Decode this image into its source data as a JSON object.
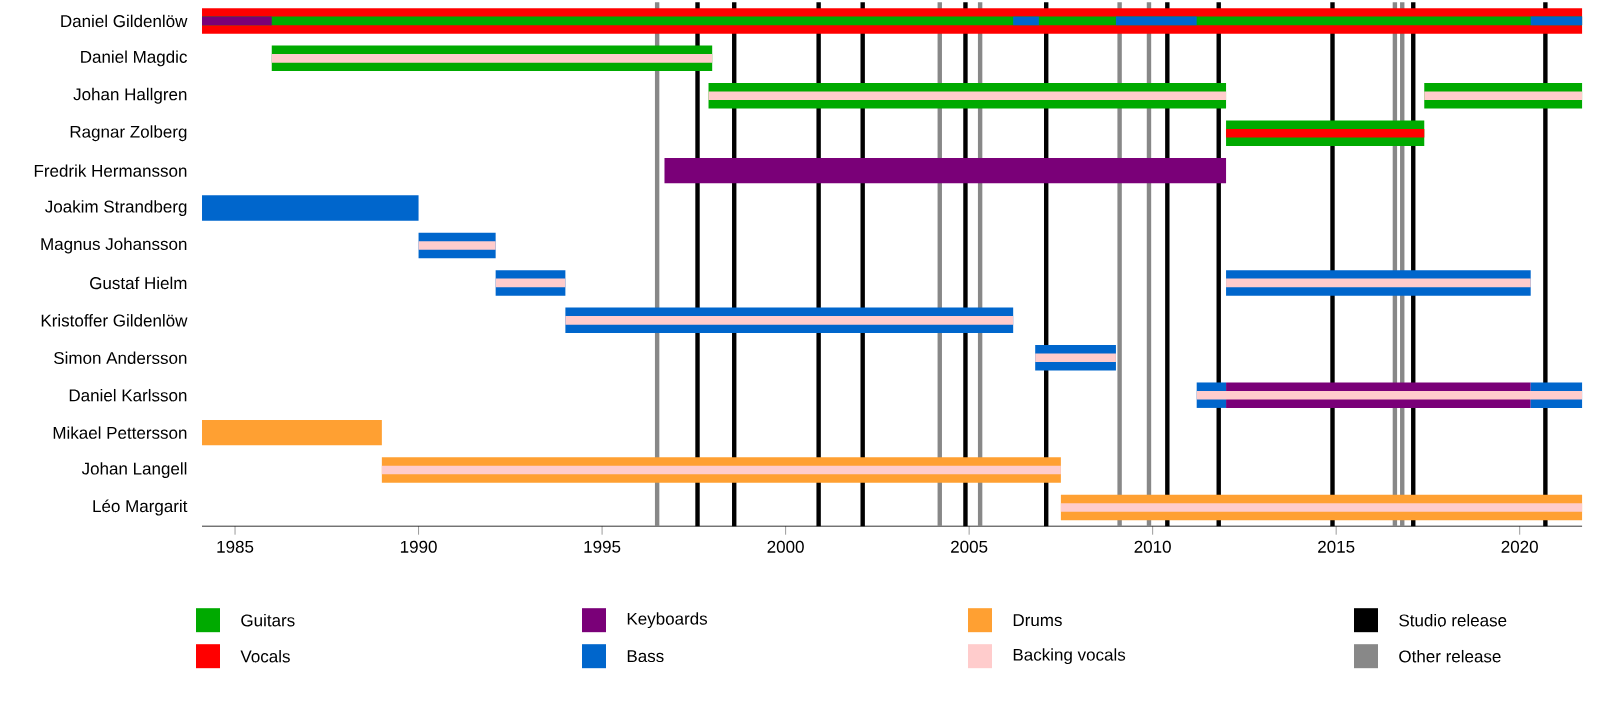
{
  "chart_data": {
    "type": "bar",
    "orientation": "horizontal",
    "categories": [
      "Daniel Gildenlöw",
      "Daniel Magdic",
      "Johan Hallgren",
      "Ragnar Zolberg",
      "Fredrik Hermansson",
      "Joakim Strandberg",
      "Magnus Johansson",
      "Gustaf Hielm",
      "Kristoffer Gildenlöw",
      "Simon Andersson",
      "Daniel Karlsson",
      "Mikael Pettersson",
      "Johan Langell",
      "Léo Margarit"
    ],
    "xlim": [
      1984.1,
      2021.7
    ],
    "xticks": [
      1985,
      1990,
      1995,
      2000,
      2005,
      2010,
      2015,
      2020
    ],
    "legend": "bottom",
    "series": [
      {
        "name": "Guitars",
        "color": "#00aa00",
        "base": [
          null,
          1986.0,
          1997.9,
          2012.0,
          null,
          null,
          null,
          null,
          null,
          null,
          null,
          null,
          null,
          null
        ],
        "values": [
          null,
          12.0,
          14.1,
          5.4,
          null,
          null,
          null,
          null,
          null,
          null,
          null,
          null,
          null,
          null
        ]
      },
      {
        "color": "#00aa00",
        "base": [
          null,
          null,
          2017.4,
          null,
          null,
          null,
          null,
          null,
          null,
          null,
          null,
          null,
          null,
          null
        ],
        "values": [
          null,
          null,
          4.3,
          null,
          null,
          null,
          null,
          null,
          null,
          null,
          null,
          null,
          null,
          null
        ]
      },
      {
        "name": "Vocals",
        "color": "#ff0000",
        "base": [
          1984.1,
          null,
          null,
          2012.0,
          null,
          null,
          null,
          null,
          null,
          null,
          null,
          null,
          null,
          null
        ],
        "values": [
          37.6,
          null,
          null,
          5.4,
          null,
          null,
          null,
          null,
          null,
          null,
          null,
          null,
          null,
          null
        ]
      },
      {
        "color": "#00aa00",
        "base": [
          1984.1,
          null,
          null,
          null,
          null,
          null,
          null,
          null,
          null,
          null,
          null,
          null,
          null,
          null
        ],
        "values": [
          37.6,
          null,
          null,
          null,
          null,
          null,
          null,
          null,
          null,
          null,
          null,
          null,
          null,
          null
        ]
      },
      {
        "name": "Keyboards",
        "color": "#7a0078",
        "base": [
          null,
          null,
          null,
          null,
          1996.7,
          null,
          null,
          null,
          null,
          null,
          2012.0,
          null,
          null,
          null
        ],
        "values": [
          null,
          null,
          null,
          null,
          15.3,
          null,
          null,
          null,
          null,
          null,
          8.3,
          null,
          null,
          null
        ]
      },
      {
        "name": "Bass",
        "color": "#0066cc",
        "base": [
          null,
          null,
          null,
          null,
          null,
          1984.1,
          1990.0,
          1992.1,
          1994.0,
          2006.8,
          2011.2,
          null,
          null,
          null
        ],
        "values": [
          null,
          null,
          null,
          null,
          null,
          5.9,
          2.1,
          1.9,
          12.2,
          2.2,
          0.8,
          null,
          null,
          null
        ]
      },
      {
        "color": "#0066cc",
        "base": [
          null,
          null,
          null,
          null,
          null,
          null,
          null,
          2012.0,
          null,
          null,
          2020.3,
          null,
          null,
          null
        ],
        "values": [
          null,
          null,
          null,
          null,
          null,
          null,
          null,
          8.3,
          null,
          null,
          1.4,
          null,
          null,
          null
        ]
      },
      {
        "name": "Drums",
        "color": "#ffa032",
        "base": [
          null,
          null,
          null,
          null,
          null,
          null,
          null,
          null,
          null,
          null,
          null,
          1984.1,
          1989.0,
          2007.5
        ],
        "values": [
          null,
          null,
          null,
          null,
          null,
          null,
          null,
          null,
          null,
          null,
          null,
          4.9,
          18.5,
          14.2
        ]
      },
      {
        "name": "Backing vocals",
        "color": "#ffcccc",
        "base": [
          null,
          1986.0,
          1997.9,
          null,
          null,
          null,
          1990.0,
          1992.1,
          1994.0,
          2006.8,
          2011.2,
          null,
          1989.0,
          2007.5
        ],
        "values": [
          null,
          12.0,
          14.1,
          null,
          null,
          null,
          2.1,
          1.9,
          12.2,
          2.2,
          10.5,
          null,
          18.5,
          14.2
        ]
      },
      {
        "color": "#ffcccc",
        "base": [
          null,
          null,
          2017.4,
          null,
          null,
          null,
          null,
          2012.0,
          null,
          null,
          null,
          null,
          null,
          null
        ],
        "values": [
          null,
          null,
          4.3,
          null,
          null,
          null,
          null,
          8.3,
          null,
          null,
          null,
          null,
          null,
          null
        ]
      },
      {
        "color": "#7a0078",
        "base": [
          1984.1,
          null,
          null,
          null,
          null,
          null,
          null,
          null,
          null,
          null,
          null,
          null,
          null,
          null
        ],
        "values": [
          1.9,
          null,
          null,
          null,
          null,
          null,
          null,
          null,
          null,
          null,
          null,
          null,
          null,
          null
        ]
      },
      {
        "color": "#0066cc",
        "base": [
          2006.2,
          null,
          null,
          null,
          null,
          null,
          null,
          null,
          null,
          null,
          null,
          null,
          null,
          null
        ],
        "values": [
          0.7,
          null,
          null,
          null,
          null,
          null,
          null,
          null,
          null,
          null,
          null,
          null,
          null,
          null
        ]
      },
      {
        "color": "#0066cc",
        "base": [
          2009.0,
          null,
          null,
          null,
          null,
          null,
          null,
          null,
          null,
          null,
          null,
          null,
          null,
          null
        ],
        "values": [
          2.2,
          null,
          null,
          null,
          null,
          null,
          null,
          null,
          null,
          null,
          null,
          null,
          null,
          null
        ]
      },
      {
        "color": "#0066cc",
        "base": [
          2020.3,
          null,
          null,
          null,
          null,
          null,
          null,
          null,
          null,
          null,
          null,
          null,
          null,
          null
        ],
        "values": [
          1.4,
          null,
          null,
          null,
          null,
          null,
          null,
          null,
          null,
          null,
          null,
          null,
          null,
          null
        ]
      }
    ],
    "ref_lines": [
      {
        "axis": "x",
        "value": 1997.6,
        "color": "#000000",
        "label": "Studio release"
      },
      {
        "axis": "x",
        "value": 1996.5,
        "color": "#888888",
        "label": "Other release"
      },
      {
        "axis": "x",
        "value": 1998.6,
        "color": "#000000"
      },
      {
        "axis": "x",
        "value": 2000.9,
        "color": "#000000"
      },
      {
        "axis": "x",
        "value": 2002.1,
        "color": "#000000"
      },
      {
        "axis": "x",
        "value": 2004.2,
        "color": "#888888"
      },
      {
        "axis": "x",
        "value": 2004.9,
        "color": "#000000"
      },
      {
        "axis": "x",
        "value": 2005.3,
        "color": "#888888"
      },
      {
        "axis": "x",
        "value": 2007.1,
        "color": "#000000"
      },
      {
        "axis": "x",
        "value": 2009.1,
        "color": "#888888"
      },
      {
        "axis": "x",
        "value": 2009.9,
        "color": "#888888"
      },
      {
        "axis": "x",
        "value": 2010.4,
        "color": "#000000"
      },
      {
        "axis": "x",
        "value": 2011.8,
        "color": "#000000"
      },
      {
        "axis": "x",
        "value": 2014.9,
        "color": "#000000"
      },
      {
        "axis": "x",
        "value": 2016.6,
        "color": "#888888"
      },
      {
        "axis": "x",
        "value": 2016.8,
        "color": "#888888"
      },
      {
        "axis": "x",
        "value": 2017.1,
        "color": "#000000"
      },
      {
        "axis": "x",
        "value": 2020.7,
        "color": "#000000"
      }
    ]
  }
}
